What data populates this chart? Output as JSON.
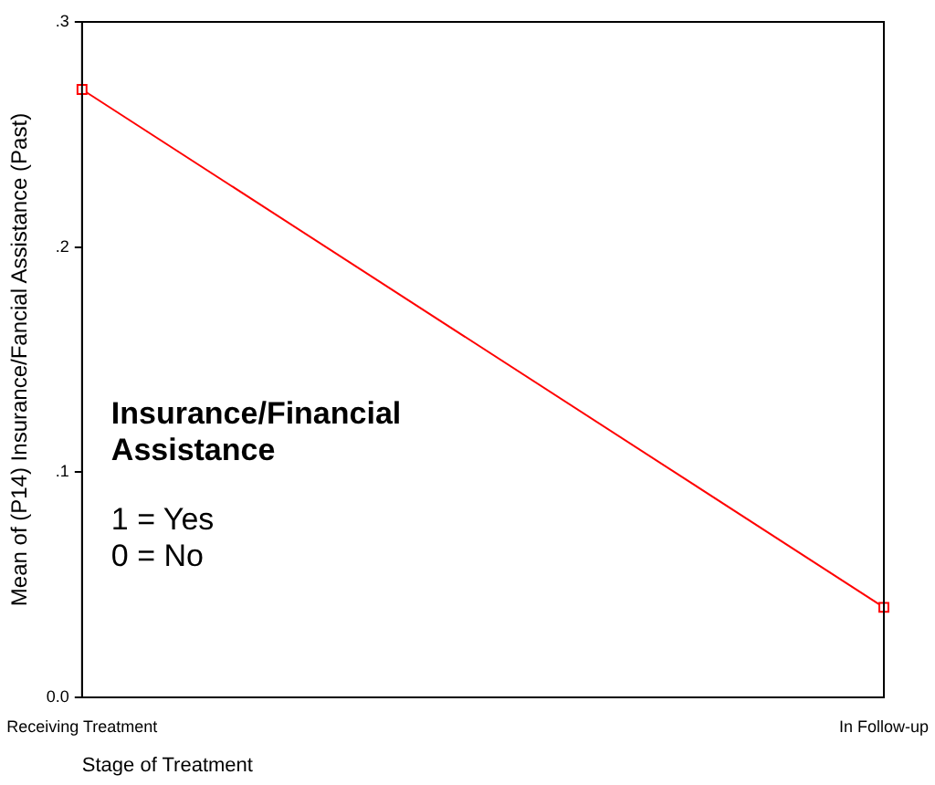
{
  "chart_data": {
    "type": "line",
    "xlabel": "Stage of Treatment",
    "ylabel": "Mean of (P14) Insurance/Fancial Assistance (Past)",
    "categories": [
      "Receiving Treatment",
      "In Follow-up"
    ],
    "series": [
      {
        "color": "#ff0000",
        "values": [
          0.27,
          0.04
        ]
      }
    ],
    "ylim": [
      0,
      0.3
    ],
    "yticks": [
      {
        "value": 0,
        "label": "0.0"
      },
      {
        "value": 0.1,
        "label": ".1"
      },
      {
        "value": 0.2,
        "label": ".2"
      },
      {
        "value": 0.3,
        "label": ".3"
      }
    ],
    "annotations": [
      "Insurance/Financial Assistance",
      "1 = Yes",
      "0 = No"
    ],
    "marker": "square",
    "line_style": "solid",
    "grid": false,
    "legend": false
  }
}
